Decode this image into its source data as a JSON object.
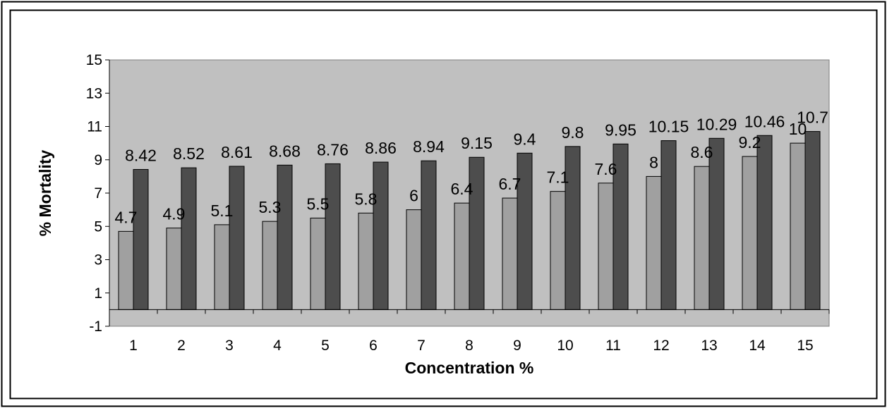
{
  "chart_data": {
    "type": "bar",
    "title": "",
    "xlabel": "Concentration %",
    "ylabel": "% Mortality",
    "categories": [
      "1",
      "2",
      "3",
      "4",
      "5",
      "6",
      "7",
      "8",
      "9",
      "10",
      "11",
      "12",
      "13",
      "14",
      "15"
    ],
    "series": [
      {
        "values": [
          4.7,
          4.9,
          5.1,
          5.3,
          5.5,
          5.8,
          6,
          6.4,
          6.7,
          7.1,
          7.6,
          8,
          8.6,
          9.2,
          10
        ]
      },
      {
        "values": [
          8.42,
          8.52,
          8.61,
          8.68,
          8.76,
          8.86,
          8.94,
          9.15,
          9.4,
          9.8,
          9.95,
          10.15,
          10.29,
          10.46,
          10.7
        ]
      }
    ],
    "ylim": [
      -1,
      15
    ],
    "yticks": [
      -1,
      1,
      3,
      5,
      7,
      9,
      11,
      13,
      15
    ],
    "colors": {
      "plot_bg": "#c0c0c0",
      "series1": "#a0a0a0",
      "series2": "#4d4d4d"
    },
    "grid": false,
    "legend": "none"
  }
}
